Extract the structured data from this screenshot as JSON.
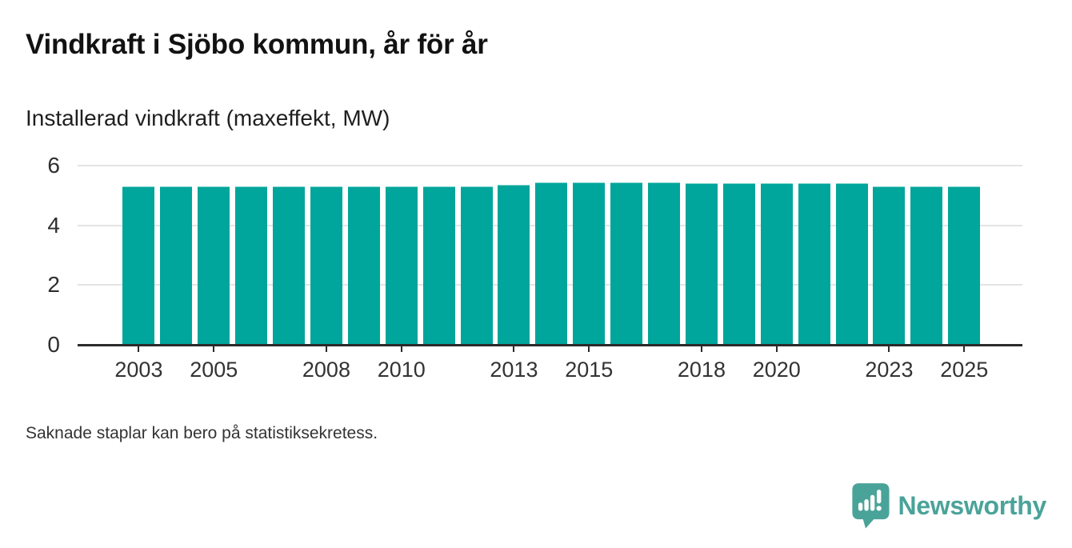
{
  "chart_data": {
    "type": "bar",
    "title": "Vindkraft i Sjöbo kommun, år för år",
    "subtitle": "Installerad vindkraft (maxeffekt, MW)",
    "ylabel": "Installerad vindkraft (maxeffekt, MW)",
    "xlabel": "",
    "unit": "MW",
    "categories": [
      "2003",
      "2004",
      "2005",
      "2006",
      "2007",
      "2008",
      "2009",
      "2010",
      "2011",
      "2012",
      "2013",
      "2014",
      "2015",
      "2016",
      "2017",
      "2018",
      "2019",
      "2020",
      "2021",
      "2022",
      "2023",
      "2024",
      "2025"
    ],
    "values": [
      5.3,
      5.3,
      5.3,
      5.3,
      5.3,
      5.3,
      5.3,
      5.3,
      5.3,
      5.3,
      5.35,
      5.45,
      5.45,
      5.45,
      5.45,
      5.4,
      5.4,
      5.4,
      5.4,
      5.4,
      5.3,
      5.3,
      5.3
    ],
    "x_tick_labels": [
      "2003",
      "2005",
      "2008",
      "2010",
      "2013",
      "2015",
      "2018",
      "2020",
      "2023",
      "2025"
    ],
    "y_ticks": [
      0,
      2,
      4,
      6
    ],
    "ylim": [
      0,
      6
    ],
    "grid": "horizontal-only",
    "legend": "none",
    "bar_color": "#00a59b"
  },
  "footer": {
    "note": "Saknade staplar kan bero på statistiksekretess.",
    "brand": "Newsworthy",
    "brand_icon": "speech-bubble-bar-chart-icon"
  },
  "colors": {
    "bar": "#00a59b",
    "bar_edge": "#7fd4cd",
    "grid": "#e4e4e4",
    "axis": "#2b2b2b",
    "title_text": "#121212",
    "tick_text": "#333333",
    "brand_teal": "#4aa399",
    "background": "#ffffff"
  }
}
